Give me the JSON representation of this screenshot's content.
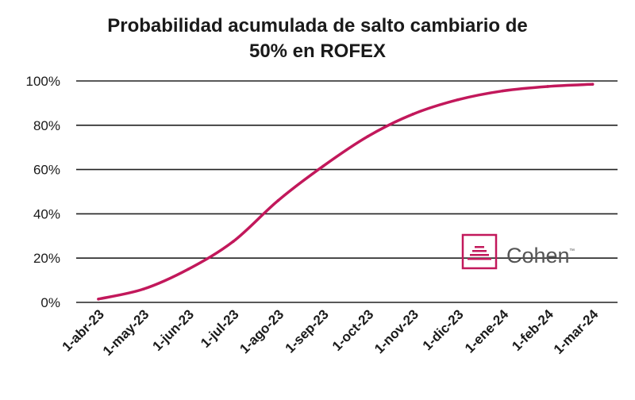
{
  "chart_data": {
    "type": "line",
    "title": "Probabilidad acumulada de salto cambiario de",
    "subtitle": "50% en ROFEX",
    "xlabel": "",
    "ylabel": "",
    "categories": [
      "1-abr-23",
      "1-may-23",
      "1-jun-23",
      "1-jul-23",
      "1-ago-23",
      "1-sep-23",
      "1-oct-23",
      "1-nov-23",
      "1-dic-23",
      "1-ene-24",
      "1-feb-24",
      "1-mar-24"
    ],
    "yticks": [
      "0%",
      "20%",
      "40%",
      "60%",
      "80%",
      "100%"
    ],
    "ylim": [
      0,
      100
    ],
    "grid": true,
    "series": [
      {
        "values": [
          1.5,
          6,
          15,
          27.5,
          46,
          61.5,
          75,
          85,
          91.5,
          95.5,
          97.5,
          98.5
        ]
      }
    ],
    "colors": {
      "line": "#c2185b",
      "grid": "#222222",
      "text": "#1a1a1a"
    }
  },
  "logo": {
    "text": "Cohen",
    "tm": "™",
    "color": "#c2185b"
  }
}
